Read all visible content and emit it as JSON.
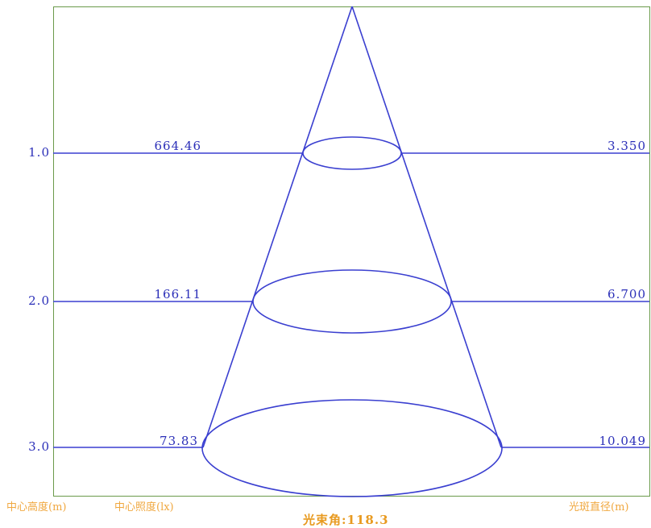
{
  "levels": [
    {
      "height": "1.0",
      "illuminance": "664.46",
      "diameter": "3.350"
    },
    {
      "height": "2.0",
      "illuminance": "166.11",
      "diameter": "6.700"
    },
    {
      "height": "3.0",
      "illuminance": "73.83",
      "diameter": "10.049"
    }
  ],
  "footer": {
    "center_height_label": "中心高度(m)",
    "center_illuminance_label": "中心照度(lx)",
    "spot_diameter_label": "光斑直径(m)",
    "beam_angle": "光束角:118.3"
  },
  "colors": {
    "lines": "#3a3fd0",
    "labels": "#2b2fb8",
    "footer": "#f0a840",
    "frame": "#6a9a4a"
  }
}
